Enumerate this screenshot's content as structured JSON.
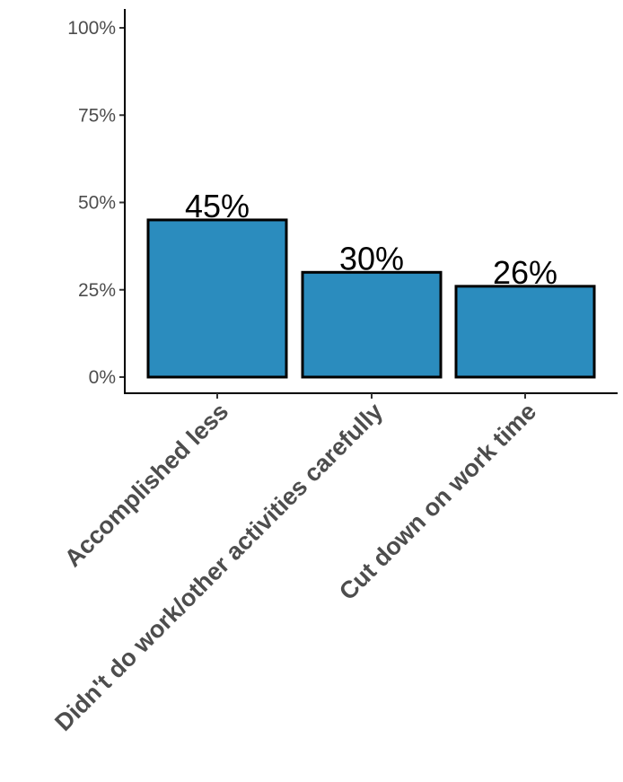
{
  "chart_data": {
    "type": "bar",
    "title": "",
    "xlabel": "",
    "ylabel": "",
    "categories": [
      "Accomplished less",
      "Didn't do work/other activities carefully",
      "Cut down on work time"
    ],
    "values": [
      45,
      30,
      26
    ],
    "value_labels": [
      "45%",
      "30%",
      "26%"
    ],
    "ylim": [
      0,
      100
    ],
    "yticks": [
      0,
      25,
      50,
      75,
      100
    ],
    "ytick_labels": [
      "0%",
      "25%",
      "50%",
      "75%",
      "100%"
    ],
    "grid": false,
    "legend": "none",
    "bar_color": "#2b8cbe",
    "bar_edge_color": "#000000"
  }
}
